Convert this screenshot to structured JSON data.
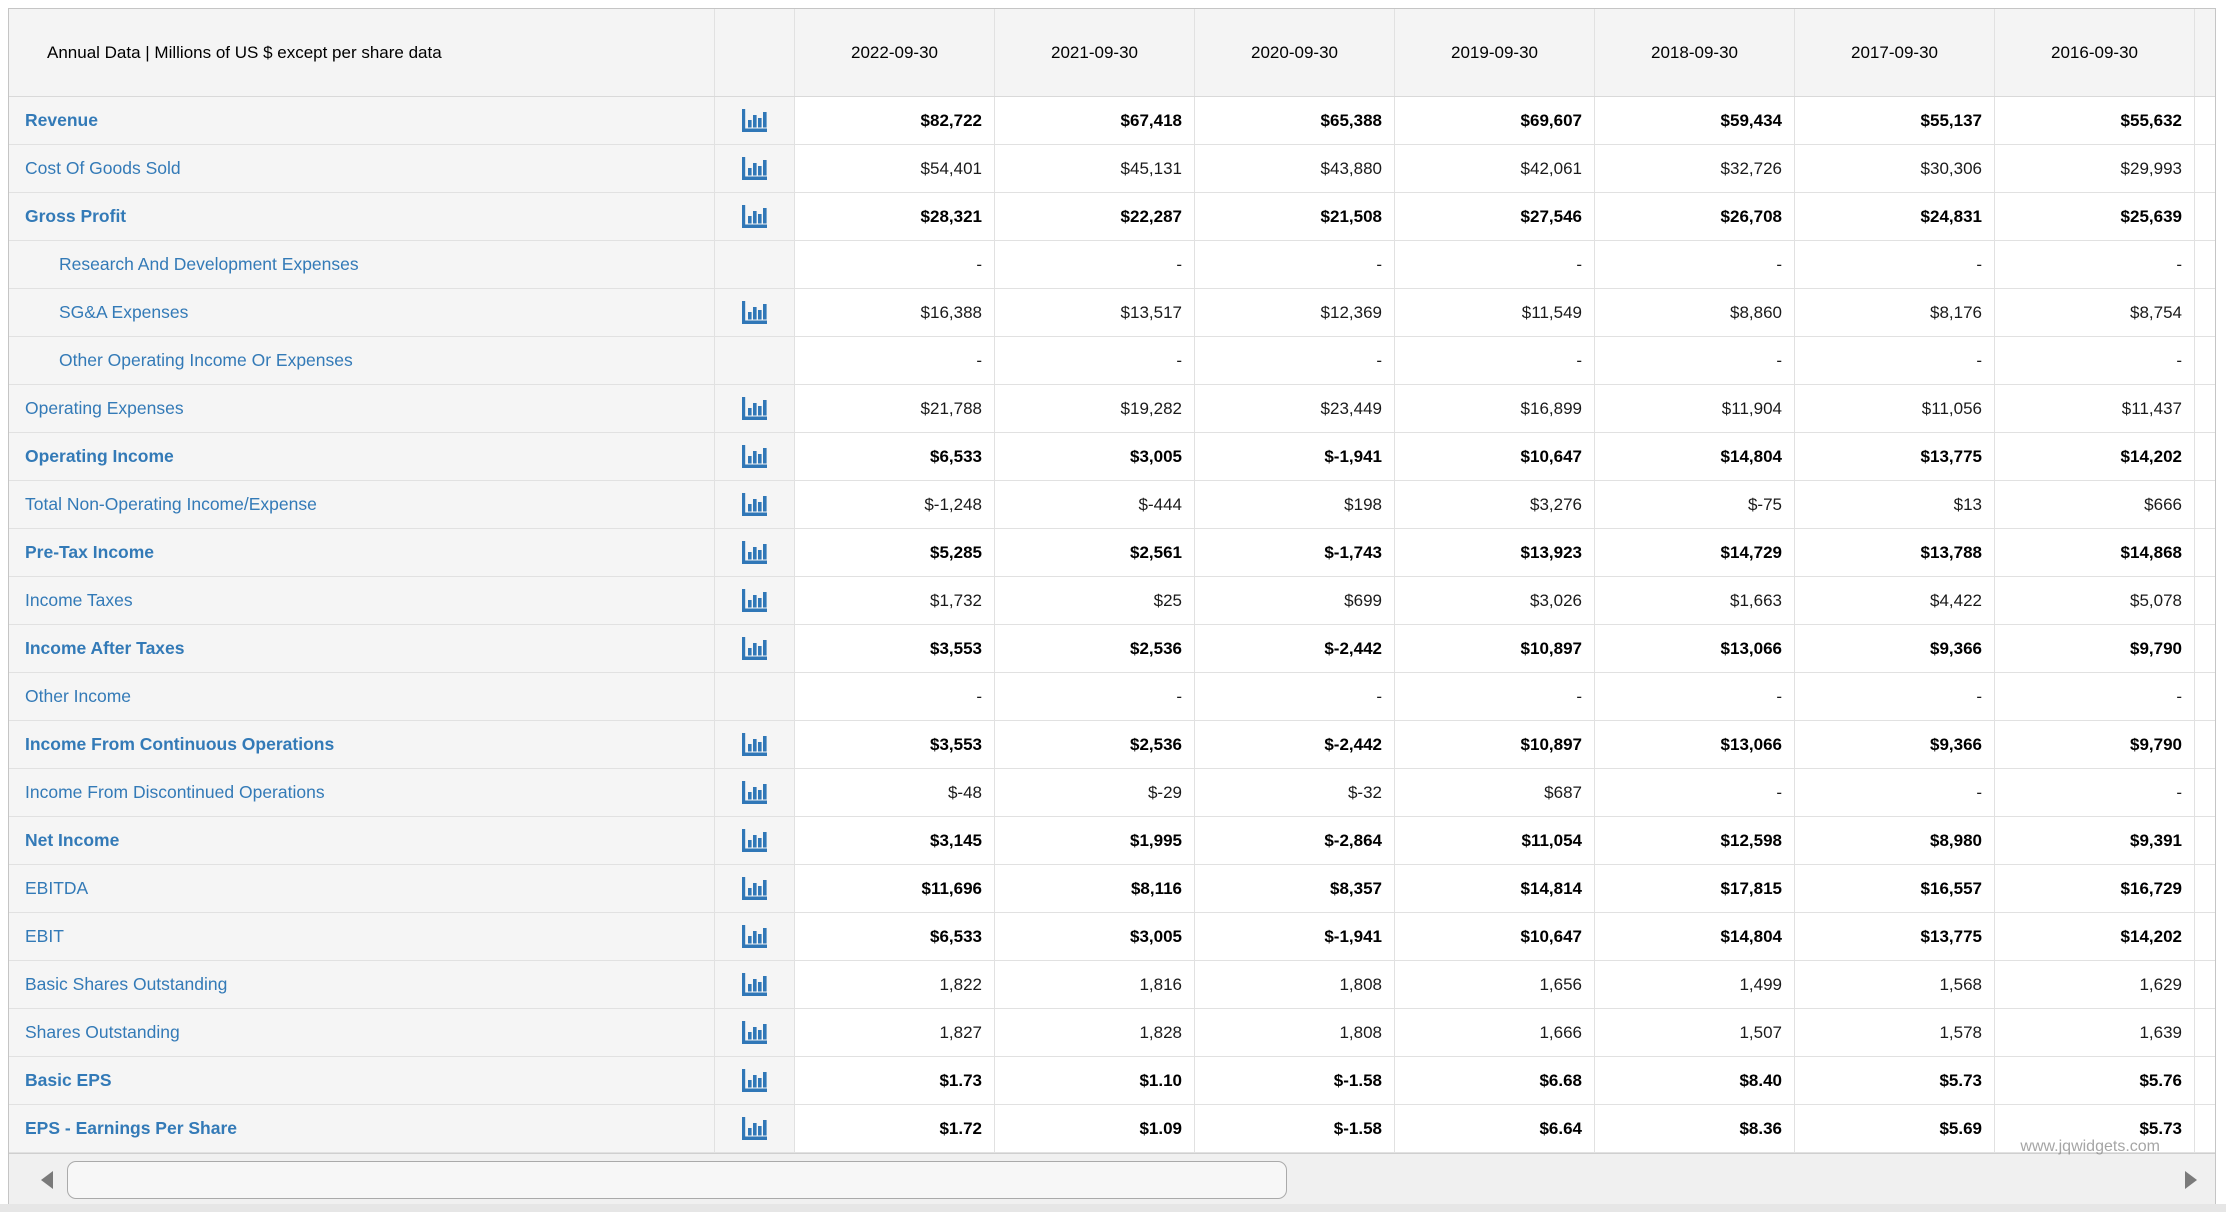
{
  "header": {
    "title": "Annual Data | Millions of US $ except per share data",
    "columns": [
      "2022-09-30",
      "2021-09-30",
      "2020-09-30",
      "2019-09-30",
      "2018-09-30",
      "2017-09-30",
      "2016-09-30"
    ]
  },
  "colors": {
    "link_blue": "#337ab7",
    "icon_blue": "#3077b7",
    "header_bg": "#f4f4f4",
    "pinned_col_bg": "#f5f5f5",
    "grid_line": "#e1e1e1",
    "value_text": "#1a1a1a"
  },
  "icons": {
    "row_action": "bar-chart-icon",
    "scroll_left": "left-arrow-icon",
    "scroll_right": "right-arrow-icon"
  },
  "watermark": "www.jqwidgets.com",
  "table": {
    "rows": [
      {
        "label": "Revenue",
        "bold_label": true,
        "bold_values": true,
        "indent": false,
        "chart_icon": true,
        "values": [
          "$82,722",
          "$67,418",
          "$65,388",
          "$69,607",
          "$59,434",
          "$55,137",
          "$55,632"
        ]
      },
      {
        "label": "Cost Of Goods Sold",
        "bold_label": false,
        "bold_values": false,
        "indent": false,
        "chart_icon": true,
        "values": [
          "$54,401",
          "$45,131",
          "$43,880",
          "$42,061",
          "$32,726",
          "$30,306",
          "$29,993"
        ]
      },
      {
        "label": "Gross Profit",
        "bold_label": true,
        "bold_values": true,
        "indent": false,
        "chart_icon": true,
        "values": [
          "$28,321",
          "$22,287",
          "$21,508",
          "$27,546",
          "$26,708",
          "$24,831",
          "$25,639"
        ]
      },
      {
        "label": "Research And Development Expenses",
        "bold_label": false,
        "bold_values": false,
        "indent": true,
        "chart_icon": false,
        "values": [
          "-",
          "-",
          "-",
          "-",
          "-",
          "-",
          "-"
        ]
      },
      {
        "label": "SG&A Expenses",
        "bold_label": false,
        "bold_values": false,
        "indent": true,
        "chart_icon": true,
        "values": [
          "$16,388",
          "$13,517",
          "$12,369",
          "$11,549",
          "$8,860",
          "$8,176",
          "$8,754"
        ]
      },
      {
        "label": "Other Operating Income Or Expenses",
        "bold_label": false,
        "bold_values": false,
        "indent": true,
        "chart_icon": false,
        "values": [
          "-",
          "-",
          "-",
          "-",
          "-",
          "-",
          "-"
        ]
      },
      {
        "label": "Operating Expenses",
        "bold_label": false,
        "bold_values": false,
        "indent": false,
        "chart_icon": true,
        "values": [
          "$21,788",
          "$19,282",
          "$23,449",
          "$16,899",
          "$11,904",
          "$11,056",
          "$11,437"
        ]
      },
      {
        "label": "Operating Income",
        "bold_label": true,
        "bold_values": true,
        "indent": false,
        "chart_icon": true,
        "values": [
          "$6,533",
          "$3,005",
          "$-1,941",
          "$10,647",
          "$14,804",
          "$13,775",
          "$14,202"
        ]
      },
      {
        "label": "Total Non-Operating Income/Expense",
        "bold_label": false,
        "bold_values": false,
        "indent": false,
        "chart_icon": true,
        "values": [
          "$-1,248",
          "$-444",
          "$198",
          "$3,276",
          "$-75",
          "$13",
          "$666"
        ]
      },
      {
        "label": "Pre-Tax Income",
        "bold_label": true,
        "bold_values": true,
        "indent": false,
        "chart_icon": true,
        "values": [
          "$5,285",
          "$2,561",
          "$-1,743",
          "$13,923",
          "$14,729",
          "$13,788",
          "$14,868"
        ]
      },
      {
        "label": "Income Taxes",
        "bold_label": false,
        "bold_values": false,
        "indent": false,
        "chart_icon": true,
        "values": [
          "$1,732",
          "$25",
          "$699",
          "$3,026",
          "$1,663",
          "$4,422",
          "$5,078"
        ]
      },
      {
        "label": "Income After Taxes",
        "bold_label": true,
        "bold_values": true,
        "indent": false,
        "chart_icon": true,
        "values": [
          "$3,553",
          "$2,536",
          "$-2,442",
          "$10,897",
          "$13,066",
          "$9,366",
          "$9,790"
        ]
      },
      {
        "label": "Other Income",
        "bold_label": false,
        "bold_values": false,
        "indent": false,
        "chart_icon": false,
        "values": [
          "-",
          "-",
          "-",
          "-",
          "-",
          "-",
          "-"
        ]
      },
      {
        "label": "Income From Continuous Operations",
        "bold_label": true,
        "bold_values": true,
        "indent": false,
        "chart_icon": true,
        "values": [
          "$3,553",
          "$2,536",
          "$-2,442",
          "$10,897",
          "$13,066",
          "$9,366",
          "$9,790"
        ]
      },
      {
        "label": "Income From Discontinued Operations",
        "bold_label": false,
        "bold_values": false,
        "indent": false,
        "chart_icon": true,
        "values": [
          "$-48",
          "$-29",
          "$-32",
          "$687",
          "-",
          "-",
          "-"
        ]
      },
      {
        "label": "Net Income",
        "bold_label": true,
        "bold_values": true,
        "indent": false,
        "chart_icon": true,
        "values": [
          "$3,145",
          "$1,995",
          "$-2,864",
          "$11,054",
          "$12,598",
          "$8,980",
          "$9,391"
        ]
      },
      {
        "label": "EBITDA",
        "bold_label": false,
        "bold_values": true,
        "indent": false,
        "chart_icon": true,
        "values": [
          "$11,696",
          "$8,116",
          "$8,357",
          "$14,814",
          "$17,815",
          "$16,557",
          "$16,729"
        ]
      },
      {
        "label": "EBIT",
        "bold_label": false,
        "bold_values": true,
        "indent": false,
        "chart_icon": true,
        "values": [
          "$6,533",
          "$3,005",
          "$-1,941",
          "$10,647",
          "$14,804",
          "$13,775",
          "$14,202"
        ]
      },
      {
        "label": "Basic Shares Outstanding",
        "bold_label": false,
        "bold_values": false,
        "indent": false,
        "chart_icon": true,
        "values": [
          "1,822",
          "1,816",
          "1,808",
          "1,656",
          "1,499",
          "1,568",
          "1,629"
        ]
      },
      {
        "label": "Shares Outstanding",
        "bold_label": false,
        "bold_values": false,
        "indent": false,
        "chart_icon": true,
        "values": [
          "1,827",
          "1,828",
          "1,808",
          "1,666",
          "1,507",
          "1,578",
          "1,639"
        ]
      },
      {
        "label": "Basic EPS",
        "bold_label": true,
        "bold_values": true,
        "indent": false,
        "chart_icon": true,
        "values": [
          "$1.73",
          "$1.10",
          "$-1.58",
          "$6.68",
          "$8.40",
          "$5.73",
          "$5.76"
        ]
      },
      {
        "label": "EPS - Earnings Per Share",
        "bold_label": true,
        "bold_values": true,
        "indent": false,
        "chart_icon": true,
        "values": [
          "$1.72",
          "$1.09",
          "$-1.58",
          "$6.64",
          "$8.36",
          "$5.69",
          "$5.73"
        ]
      }
    ]
  }
}
